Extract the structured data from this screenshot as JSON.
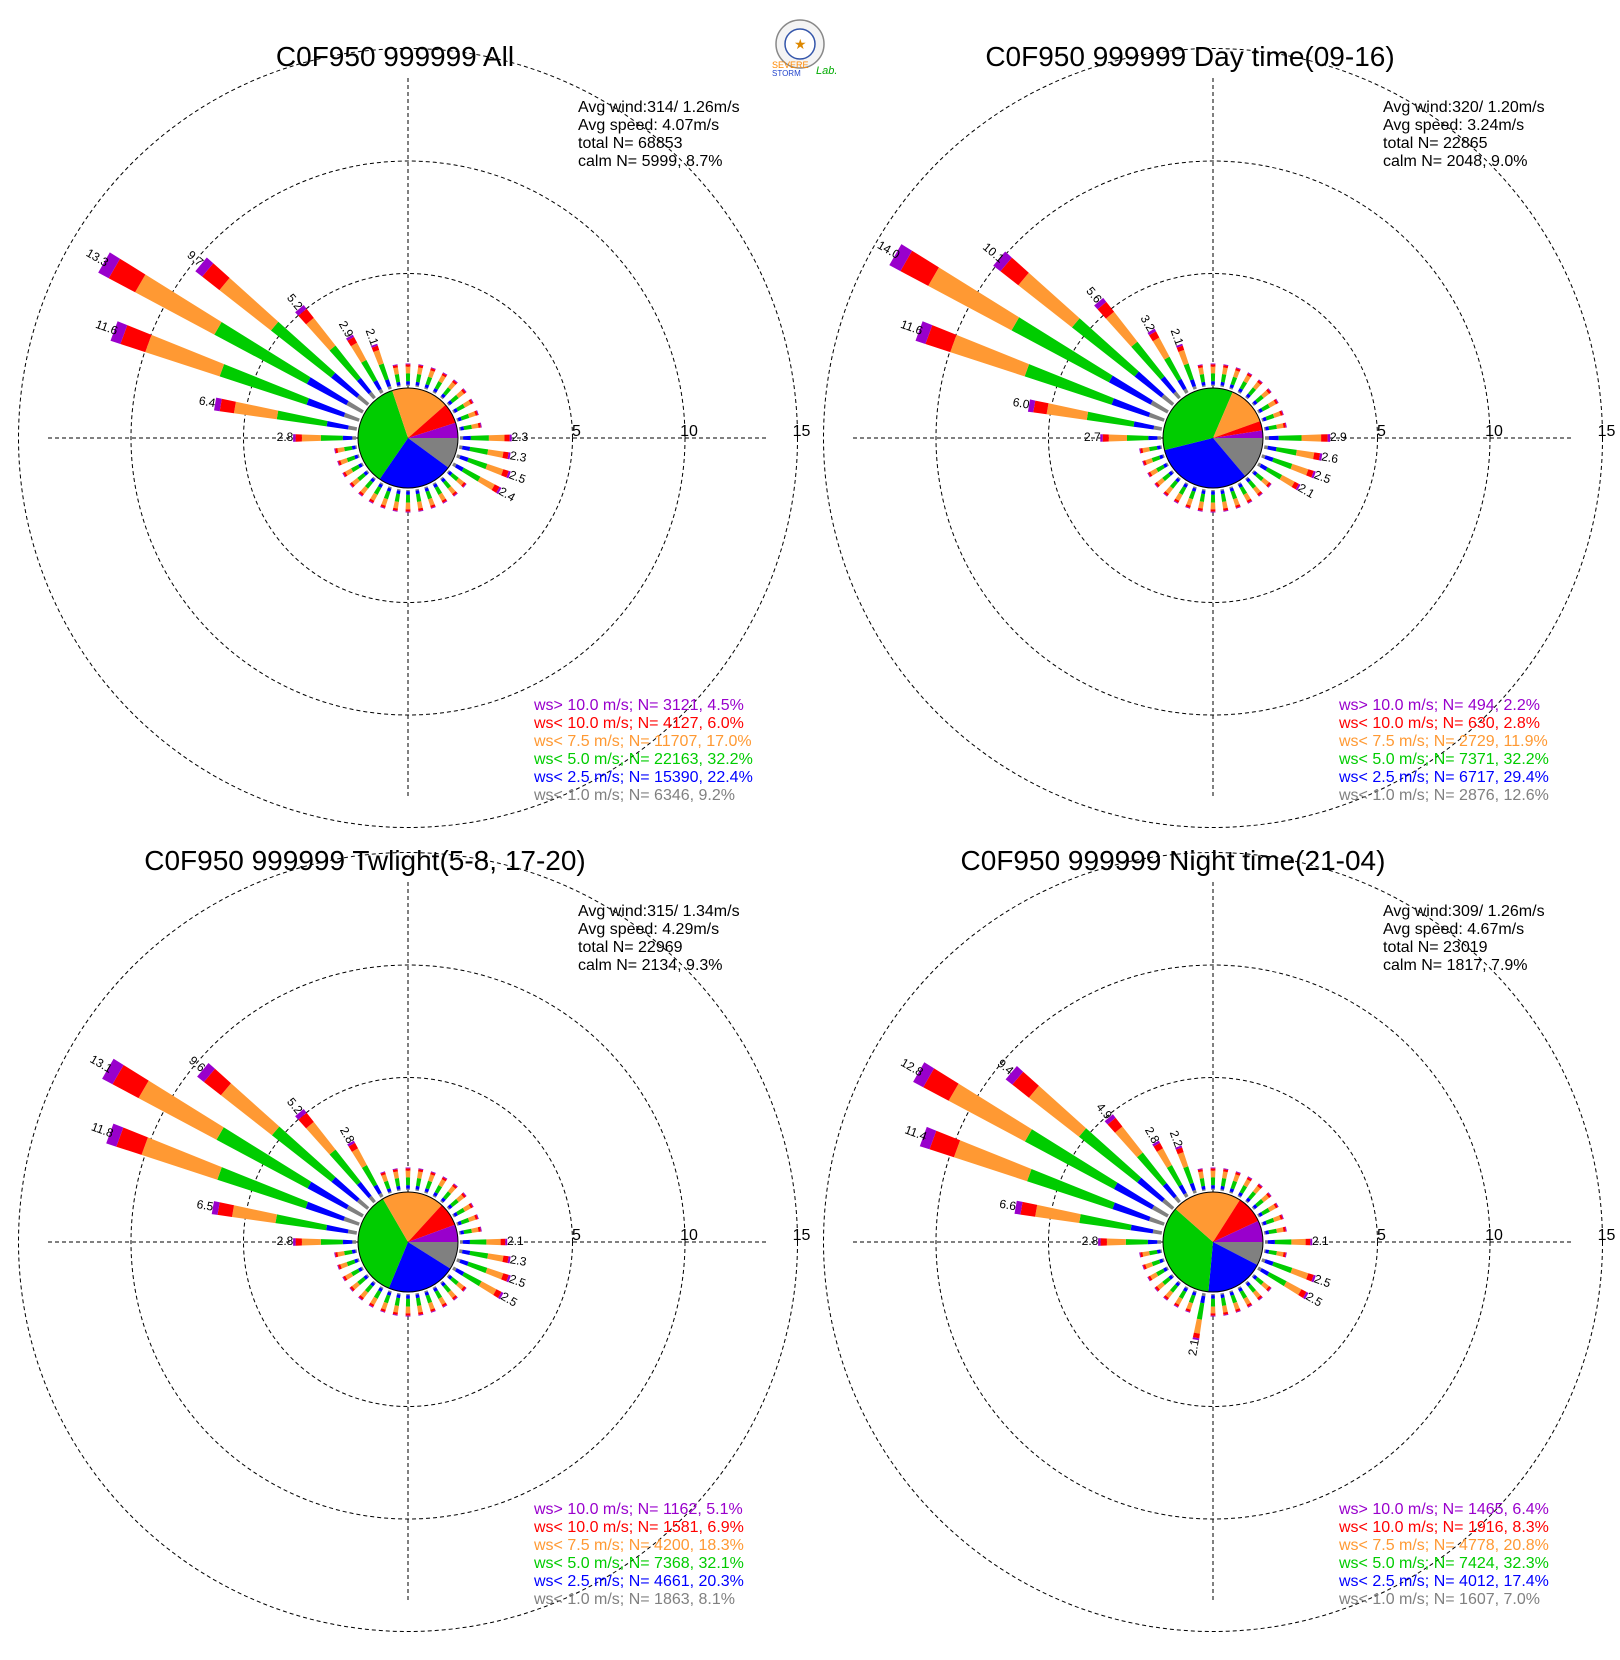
{
  "logo": {
    "text_1": "SEVERE",
    "text_2": "STORM",
    "text_3": "Lab."
  },
  "colors": {
    "gt10": "#9900cc",
    "lt10": "#ff0000",
    "lt7_5": "#ff9933",
    "lt5": "#00cc00",
    "lt2_5": "#0000ff",
    "lt1": "#808080"
  },
  "chart_data": [
    {
      "type": "wind-rose",
      "title": "C0F950 999999 All",
      "rings": [
        5,
        10,
        15
      ],
      "info": {
        "avg_wind": "Avg wind:314/ 1.26m/s",
        "avg_speed": "Avg speed: 4.07m/s",
        "total": "total N=      68853",
        "calm": "calm N=  5999,   8.7%"
      },
      "legend": [
        {
          "key": "gt10",
          "text": "ws> 10.0 m/s; N=  3121,  4.5%"
        },
        {
          "key": "lt10",
          "text": "ws< 10.0 m/s; N=  4127,  6.0%"
        },
        {
          "key": "lt7_5",
          "text": "ws<  7.5 m/s; N= 11707, 17.0%"
        },
        {
          "key": "lt5",
          "text": "ws<  5.0 m/s; N= 22163, 32.2%"
        },
        {
          "key": "lt2_5",
          "text": "ws<  2.5 m/s; N= 15390, 22.4%"
        },
        {
          "key": "lt1",
          "text": "ws<  1.0 m/s; N=  6346,  9.2%"
        }
      ],
      "pie": [
        9.2,
        22.4,
        32.2,
        17.0,
        6.0,
        4.5
      ],
      "directions": [
        {
          "deg": 300,
          "total": 13.3,
          "label": "13.3"
        },
        {
          "deg": 290,
          "total": 11.6,
          "label": "11.6"
        },
        {
          "deg": 310,
          "total": 9.7,
          "label": "9.7"
        },
        {
          "deg": 280,
          "total": 6.4,
          "label": "6.4"
        },
        {
          "deg": 320,
          "total": 5.2,
          "label": "5.2"
        },
        {
          "deg": 330,
          "total": 2.9,
          "label": "2.9"
        },
        {
          "deg": 270,
          "total": 2.8,
          "label": "2.8"
        },
        {
          "deg": 340,
          "total": 2.1,
          "label": "2.1"
        },
        {
          "deg": 90,
          "total": 2.3,
          "label": "2.3"
        },
        {
          "deg": 100,
          "total": 2.3,
          "label": "2.3"
        },
        {
          "deg": 110,
          "total": 2.5,
          "label": "2.5"
        },
        {
          "deg": 120,
          "total": 2.4,
          "label": "2.4"
        }
      ],
      "minor_total": 1.0
    },
    {
      "type": "wind-rose",
      "title": "C0F950 999999 Day time(09-16)",
      "rings": [
        5,
        10,
        15
      ],
      "info": {
        "avg_wind": "Avg wind:320/ 1.20m/s",
        "avg_speed": "Avg speed: 3.24m/s",
        "total": "total N=      22865",
        "calm": "calm N=  2048,   9.0%"
      },
      "legend": [
        {
          "key": "gt10",
          "text": "ws> 10.0 m/s; N=   494,  2.2%"
        },
        {
          "key": "lt10",
          "text": "ws< 10.0 m/s; N=   630,  2.8%"
        },
        {
          "key": "lt7_5",
          "text": "ws<  7.5 m/s; N=  2729, 11.9%"
        },
        {
          "key": "lt5",
          "text": "ws<  5.0 m/s; N=  7371, 32.2%"
        },
        {
          "key": "lt2_5",
          "text": "ws<  2.5 m/s; N=  6717, 29.4%"
        },
        {
          "key": "lt1",
          "text": "ws<  1.0 m/s; N=  2876, 12.6%"
        }
      ],
      "pie": [
        12.6,
        29.4,
        32.2,
        11.9,
        2.8,
        2.2
      ],
      "directions": [
        {
          "deg": 300,
          "total": 14.0,
          "label": "14.0"
        },
        {
          "deg": 290,
          "total": 11.6,
          "label": "11.6"
        },
        {
          "deg": 310,
          "total": 10.1,
          "label": "10.1"
        },
        {
          "deg": 280,
          "total": 6.0,
          "label": "6.0"
        },
        {
          "deg": 320,
          "total": 5.6,
          "label": "5.6"
        },
        {
          "deg": 330,
          "total": 3.2,
          "label": "3.2"
        },
        {
          "deg": 270,
          "total": 2.7,
          "label": "2.7"
        },
        {
          "deg": 340,
          "total": 2.1,
          "label": "2.1"
        },
        {
          "deg": 90,
          "total": 2.9,
          "label": "2.9"
        },
        {
          "deg": 100,
          "total": 2.6,
          "label": "2.6"
        },
        {
          "deg": 110,
          "total": 2.5,
          "label": "2.5"
        },
        {
          "deg": 120,
          "total": 2.1,
          "label": "2.1"
        }
      ],
      "minor_total": 1.0
    },
    {
      "type": "wind-rose",
      "title": "C0F950 999999 Twlight(5-8, 17-20)",
      "rings": [
        5,
        10,
        15
      ],
      "info": {
        "avg_wind": "Avg wind:315/ 1.34m/s",
        "avg_speed": "Avg speed: 4.29m/s",
        "total": "total N=      22969",
        "calm": "calm N=  2134,   9.3%"
      },
      "legend": [
        {
          "key": "gt10",
          "text": "ws> 10.0 m/s; N=  1162,  5.1%"
        },
        {
          "key": "lt10",
          "text": "ws< 10.0 m/s; N=  1581,  6.9%"
        },
        {
          "key": "lt7_5",
          "text": "ws<  7.5 m/s; N=  4200, 18.3%"
        },
        {
          "key": "lt5",
          "text": "ws<  5.0 m/s; N=  7368, 32.1%"
        },
        {
          "key": "lt2_5",
          "text": "ws<  2.5 m/s; N=  4661, 20.3%"
        },
        {
          "key": "lt1",
          "text": "ws<  1.0 m/s; N=  1863,  8.1%"
        }
      ],
      "pie": [
        8.1,
        20.3,
        32.1,
        18.3,
        6.9,
        5.1
      ],
      "directions": [
        {
          "deg": 300,
          "total": 13.1,
          "label": "13.1"
        },
        {
          "deg": 290,
          "total": 11.8,
          "label": "11.8"
        },
        {
          "deg": 310,
          "total": 9.6,
          "label": "9.6"
        },
        {
          "deg": 280,
          "total": 6.5,
          "label": "6.5"
        },
        {
          "deg": 320,
          "total": 5.2,
          "label": "5.2"
        },
        {
          "deg": 330,
          "total": 2.8,
          "label": "2.8"
        },
        {
          "deg": 270,
          "total": 2.8,
          "label": "2.8"
        },
        {
          "deg": 90,
          "total": 2.1,
          "label": "2.1"
        },
        {
          "deg": 100,
          "total": 2.3,
          "label": "2.3"
        },
        {
          "deg": 110,
          "total": 2.5,
          "label": "2.5"
        },
        {
          "deg": 120,
          "total": 2.5,
          "label": "2.5"
        }
      ],
      "minor_total": 1.0
    },
    {
      "type": "wind-rose",
      "title": "C0F950 999999 Night time(21-04)",
      "rings": [
        5,
        10,
        15
      ],
      "info": {
        "avg_wind": "Avg wind:309/ 1.26m/s",
        "avg_speed": "Avg speed: 4.67m/s",
        "total": "total N=      23019",
        "calm": "calm N=  1817,   7.9%"
      },
      "legend": [
        {
          "key": "gt10",
          "text": "ws> 10.0 m/s; N=  1465,  6.4%"
        },
        {
          "key": "lt10",
          "text": "ws< 10.0 m/s; N=  1916,  8.3%"
        },
        {
          "key": "lt7_5",
          "text": "ws<  7.5 m/s; N=  4778, 20.8%"
        },
        {
          "key": "lt5",
          "text": "ws<  5.0 m/s; N=  7424, 32.3%"
        },
        {
          "key": "lt2_5",
          "text": "ws<  2.5 m/s; N=  4012, 17.4%"
        },
        {
          "key": "lt1",
          "text": "ws<  1.0 m/s; N=  1607,  7.0%"
        }
      ],
      "pie": [
        7.0,
        17.4,
        32.3,
        20.8,
        8.3,
        6.4
      ],
      "directions": [
        {
          "deg": 300,
          "total": 12.8,
          "label": "12.8"
        },
        {
          "deg": 290,
          "total": 11.4,
          "label": "11.4"
        },
        {
          "deg": 310,
          "total": 9.4,
          "label": "9.4"
        },
        {
          "deg": 280,
          "total": 6.6,
          "label": "6.6"
        },
        {
          "deg": 320,
          "total": 4.9,
          "label": "4.9"
        },
        {
          "deg": 330,
          "total": 2.8,
          "label": "2.8"
        },
        {
          "deg": 340,
          "total": 2.2,
          "label": "2.2"
        },
        {
          "deg": 270,
          "total": 2.8,
          "label": "2.8"
        },
        {
          "deg": 90,
          "total": 2.1,
          "label": "2.1"
        },
        {
          "deg": 110,
          "total": 2.5,
          "label": "2.5"
        },
        {
          "deg": 120,
          "total": 2.5,
          "label": "2.5"
        },
        {
          "deg": 190,
          "total": 2.1,
          "label": "2.1"
        }
      ],
      "minor_total": 1.0
    }
  ]
}
